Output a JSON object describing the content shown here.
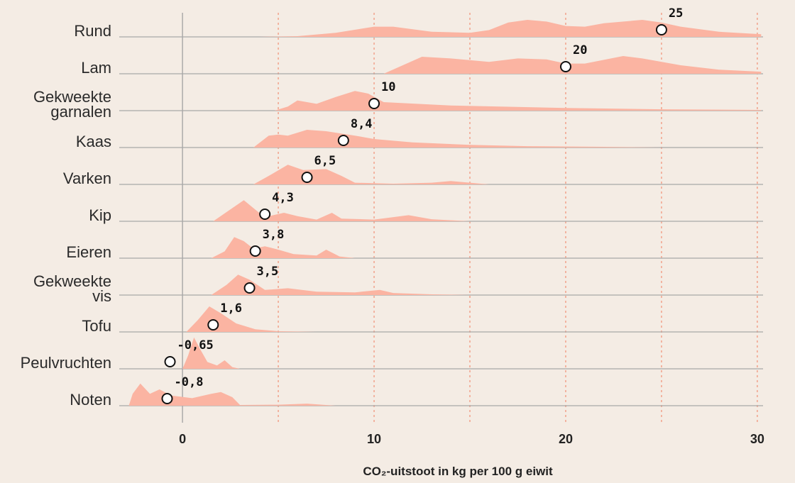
{
  "chart_data": {
    "type": "ridgeline",
    "xlabel": "CO₂-uitstoot in kg per 100 g eiwit",
    "xlim": [
      -3.3,
      30.3
    ],
    "xticks": [
      0,
      10,
      20,
      30
    ],
    "xgrid": [
      5,
      10,
      15,
      20,
      25,
      30
    ],
    "color": "#fbb4a2",
    "series": [
      {
        "name": "Rund",
        "value": 25,
        "x": [
          4,
          6,
          8,
          10,
          11,
          13,
          15,
          16,
          17,
          18,
          19,
          20,
          21,
          22,
          24,
          25,
          26,
          28,
          30.2
        ],
        "density": [
          0,
          0.02,
          0.12,
          0.3,
          0.3,
          0.15,
          0.12,
          0.2,
          0.42,
          0.5,
          0.45,
          0.32,
          0.3,
          0.4,
          0.5,
          0.42,
          0.3,
          0.15,
          0.08
        ]
      },
      {
        "name": "Lam",
        "value": 20,
        "x": [
          10.5,
          11.5,
          12.5,
          14,
          16,
          17.5,
          19,
          20,
          21,
          23,
          24,
          26,
          28,
          30.2
        ],
        "density": [
          0,
          0.25,
          0.5,
          0.45,
          0.35,
          0.45,
          0.42,
          0.3,
          0.3,
          0.52,
          0.45,
          0.25,
          0.12,
          0.06
        ]
      },
      {
        "name": "Gekweekte\ngarnalen",
        "value": 10,
        "x": [
          4.8,
          5.5,
          6,
          7,
          8,
          9,
          9.7,
          10.5,
          14,
          20,
          25,
          30.2
        ],
        "density": [
          0,
          0.12,
          0.3,
          0.2,
          0.4,
          0.58,
          0.5,
          0.25,
          0.15,
          0.08,
          0.04,
          0.02
        ]
      },
      {
        "name": "Kaas",
        "value": 8.4,
        "value_label": "8,4",
        "x": [
          3.7,
          4.5,
          5,
          5.5,
          6.5,
          7.5,
          9,
          10,
          12,
          15,
          18,
          22,
          25
        ],
        "density": [
          0,
          0.35,
          0.38,
          0.35,
          0.52,
          0.48,
          0.35,
          0.25,
          0.15,
          0.08,
          0.04,
          0.02,
          0
        ]
      },
      {
        "name": "Varken",
        "value": 6.5,
        "value_label": "6,5",
        "x": [
          3.7,
          4.5,
          5.5,
          6.3,
          7.5,
          8.3,
          9,
          11,
          13,
          14,
          15,
          16
        ],
        "density": [
          0,
          0.25,
          0.58,
          0.42,
          0.45,
          0.25,
          0.05,
          0.02,
          0.05,
          0.1,
          0.05,
          0
        ]
      },
      {
        "name": "Kip",
        "value": 4.3,
        "value_label": "4,3",
        "x": [
          1.6,
          2.5,
          3.2,
          4,
          4.5,
          5.3,
          6,
          7,
          7.8,
          8.3,
          10,
          11.8,
          13,
          15
        ],
        "density": [
          0,
          0.35,
          0.62,
          0.25,
          0.15,
          0.25,
          0.15,
          0.05,
          0.25,
          0.08,
          0.05,
          0.18,
          0.06,
          0
        ]
      },
      {
        "name": "Eieren",
        "value": 3.8,
        "value_label": "3,8",
        "x": [
          1.5,
          2.2,
          2.7,
          3.2,
          3.7,
          4.3,
          5,
          5.8,
          7,
          7.5,
          8.2,
          9
        ],
        "density": [
          0,
          0.2,
          0.62,
          0.5,
          0.28,
          0.35,
          0.25,
          0.12,
          0.08,
          0.25,
          0.05,
          0
        ]
      },
      {
        "name": "Gekweekte\nvis",
        "value": 3.5,
        "value_label": "3,5",
        "x": [
          1.5,
          2.3,
          2.9,
          3.5,
          4.3,
          5.5,
          7,
          9,
          10.3,
          11,
          13,
          15
        ],
        "density": [
          0,
          0.3,
          0.6,
          0.45,
          0.15,
          0.2,
          0.1,
          0.08,
          0.15,
          0.06,
          0.02,
          0
        ]
      },
      {
        "name": "Tofu",
        "value": 1.6,
        "value_label": "1,6",
        "x": [
          0.2,
          0.8,
          1.4,
          2,
          2.8,
          3.8,
          5,
          7
        ],
        "density": [
          0,
          0.35,
          0.75,
          0.55,
          0.25,
          0.08,
          0.02,
          0
        ]
      },
      {
        "name": "Peulvruchten",
        "value": -0.65,
        "value_label": "-0,65",
        "x": [
          0,
          0.3,
          0.6,
          0.9,
          1.3,
          1.8,
          2.2,
          2.6,
          3
        ],
        "density": [
          0,
          0.4,
          0.92,
          0.6,
          0.2,
          0.1,
          0.25,
          0.05,
          0
        ]
      },
      {
        "name": "Noten",
        "value": -0.8,
        "value_label": "-0,8",
        "x": [
          -2.8,
          -2.6,
          -2.2,
          -1.7,
          -1.2,
          -0.6,
          0.5,
          1.5,
          2,
          2.6,
          3,
          5,
          6.5,
          8
        ],
        "density": [
          0,
          0.35,
          0.65,
          0.35,
          0.48,
          0.3,
          0.22,
          0.35,
          0.4,
          0.25,
          0.02,
          0.03,
          0.06,
          0
        ]
      }
    ]
  }
}
